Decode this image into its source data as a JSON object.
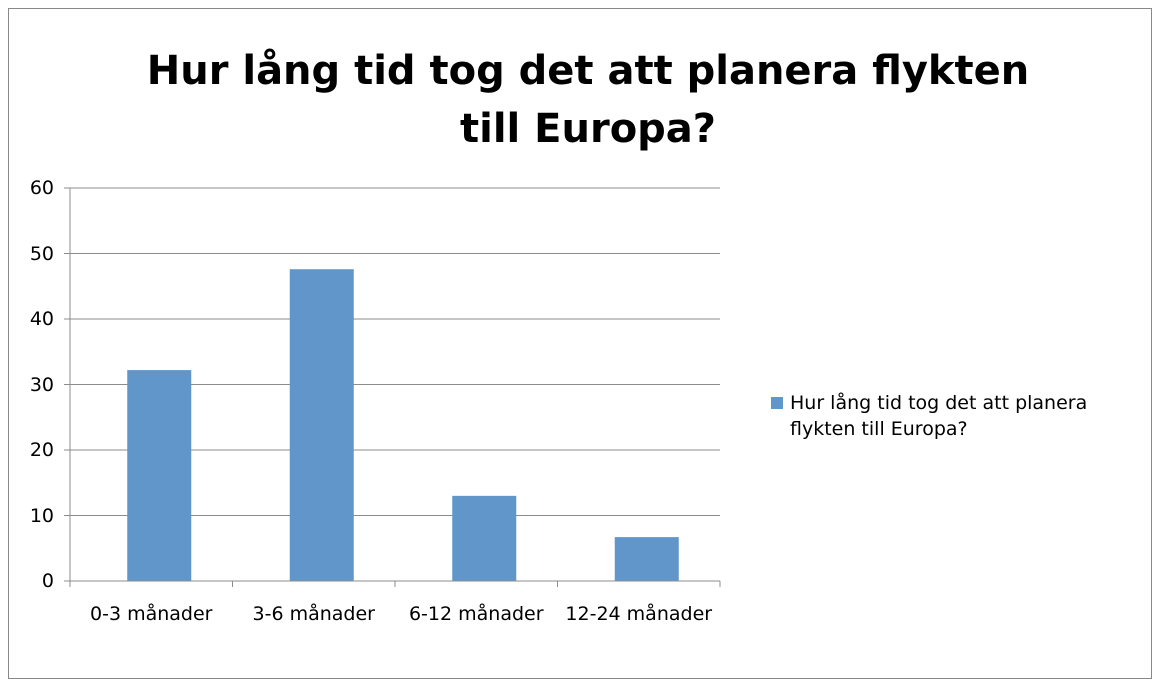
{
  "chart_data": {
    "type": "bar",
    "title": "Hur lång tid tog det att planera flykten till Europa?",
    "categories": [
      "0-3 månader",
      "3-6 månader",
      "6-12 månader",
      "12-24 månader"
    ],
    "series": [
      {
        "name": "Hur lång tid tog det att planera flykten till Europa?",
        "color": "#6096c9",
        "values": [
          32.2,
          47.6,
          13.0,
          6.7
        ]
      }
    ],
    "ylim": [
      0,
      60
    ],
    "yticks": [
      0,
      10,
      20,
      30,
      40,
      50,
      60
    ],
    "grid": true,
    "legend": "right"
  }
}
